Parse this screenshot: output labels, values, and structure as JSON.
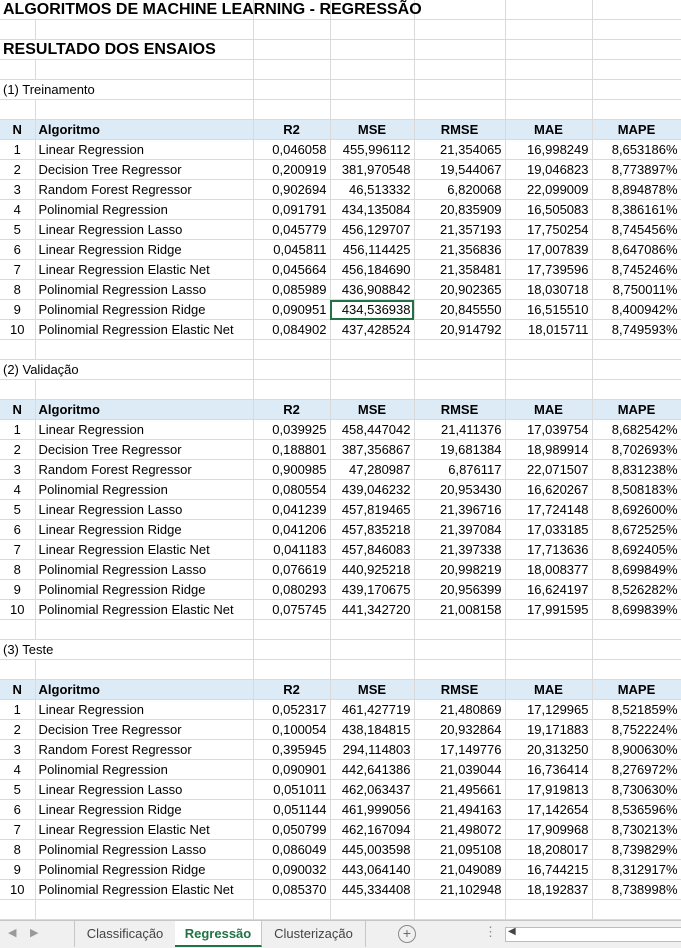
{
  "title": "ALGORITMOS DE MACHINE LEARNING - REGRESSÃO",
  "subtitle": "RESULTADO DOS ENSAIOS",
  "columns": [
    "N",
    "Algoritmo",
    "R2",
    "MSE",
    "RMSE",
    "MAE",
    "MAPE"
  ],
  "sections": [
    {
      "label": "(1) Treinamento",
      "rows": [
        [
          "1",
          "Linear Regression",
          "0,046058",
          "455,996112",
          "21,354065",
          "16,998249",
          "8,653186%"
        ],
        [
          "2",
          "Decision Tree Regressor",
          "0,200919",
          "381,970548",
          "19,544067",
          "19,046823",
          "8,773897%"
        ],
        [
          "3",
          "Random Forest Regressor",
          "0,902694",
          "46,513332",
          "6,820068",
          "22,099009",
          "8,894878%"
        ],
        [
          "4",
          "Polinomial Regression",
          "0,091791",
          "434,135084",
          "20,835909",
          "16,505083",
          "8,386161%"
        ],
        [
          "5",
          "Linear Regression Lasso",
          "0,045779",
          "456,129707",
          "21,357193",
          "17,750254",
          "8,745456%"
        ],
        [
          "6",
          "Linear Regression Ridge",
          "0,045811",
          "456,114425",
          "21,356836",
          "17,007839",
          "8,647086%"
        ],
        [
          "7",
          "Linear Regression Elastic Net",
          "0,045664",
          "456,184690",
          "21,358481",
          "17,739596",
          "8,745246%"
        ],
        [
          "8",
          "Polinomial Regression Lasso",
          "0,085989",
          "436,908842",
          "20,902365",
          "18,030718",
          "8,750011%"
        ],
        [
          "9",
          "Polinomial Regression Ridge",
          "0,090951",
          "434,536938",
          "20,845550",
          "16,515510",
          "8,400942%"
        ],
        [
          "10",
          "Polinomial Regression Elastic Net",
          "0,084902",
          "437,428524",
          "20,914792",
          "18,015711",
          "8,749593%"
        ]
      ]
    },
    {
      "label": "(2) Validação",
      "rows": [
        [
          "1",
          "Linear Regression",
          "0,039925",
          "458,447042",
          "21,411376",
          "17,039754",
          "8,682542%"
        ],
        [
          "2",
          "Decision Tree Regressor",
          "0,188801",
          "387,356867",
          "19,681384",
          "18,989914",
          "8,702693%"
        ],
        [
          "3",
          "Random Forest Regressor",
          "0,900985",
          "47,280987",
          "6,876117",
          "22,071507",
          "8,831238%"
        ],
        [
          "4",
          "Polinomial Regression",
          "0,080554",
          "439,046232",
          "20,953430",
          "16,620267",
          "8,508183%"
        ],
        [
          "5",
          "Linear Regression Lasso",
          "0,041239",
          "457,819465",
          "21,396716",
          "17,724148",
          "8,692600%"
        ],
        [
          "6",
          "Linear Regression Ridge",
          "0,041206",
          "457,835218",
          "21,397084",
          "17,033185",
          "8,672525%"
        ],
        [
          "7",
          "Linear Regression Elastic Net",
          "0,041183",
          "457,846083",
          "21,397338",
          "17,713636",
          "8,692405%"
        ],
        [
          "8",
          "Polinomial Regression Lasso",
          "0,076619",
          "440,925218",
          "20,998219",
          "18,008377",
          "8,699849%"
        ],
        [
          "9",
          "Polinomial Regression Ridge",
          "0,080293",
          "439,170675",
          "20,956399",
          "16,624197",
          "8,526282%"
        ],
        [
          "10",
          "Polinomial Regression Elastic Net",
          "0,075745",
          "441,342720",
          "21,008158",
          "17,991595",
          "8,699839%"
        ]
      ]
    },
    {
      "label": "(3) Teste",
      "rows": [
        [
          "1",
          "Linear Regression",
          "0,052317",
          "461,427719",
          "21,480869",
          "17,129965",
          "8,521859%"
        ],
        [
          "2",
          "Decision Tree Regressor",
          "0,100054",
          "438,184815",
          "20,932864",
          "19,171883",
          "8,752224%"
        ],
        [
          "3",
          "Random Forest Regressor",
          "0,395945",
          "294,114803",
          "17,149776",
          "20,313250",
          "8,900630%"
        ],
        [
          "4",
          "Polinomial Regression",
          "0,090901",
          "442,641386",
          "21,039044",
          "16,736414",
          "8,276972%"
        ],
        [
          "5",
          "Linear Regression Lasso",
          "0,051011",
          "462,063437",
          "21,495661",
          "17,919813",
          "8,730630%"
        ],
        [
          "6",
          "Linear Regression Ridge",
          "0,051144",
          "461,999056",
          "21,494163",
          "17,142654",
          "8,536596%"
        ],
        [
          "7",
          "Linear Regression Elastic Net",
          "0,050799",
          "462,167094",
          "21,498072",
          "17,909968",
          "8,730213%"
        ],
        [
          "8",
          "Polinomial Regression Lasso",
          "0,086049",
          "445,003598",
          "21,095108",
          "18,208017",
          "8,739829%"
        ],
        [
          "9",
          "Polinomial Regression Ridge",
          "0,090032",
          "443,064140",
          "21,049089",
          "16,744215",
          "8,312917%"
        ],
        [
          "10",
          "Polinomial Regression Elastic Net",
          "0,085370",
          "445,334408",
          "21,102948",
          "18,192837",
          "8,738998%"
        ]
      ]
    }
  ],
  "sheet_tabs": [
    {
      "label": "Classificação",
      "active": false
    },
    {
      "label": "Regressão",
      "active": true
    },
    {
      "label": "Clusterização",
      "active": false
    }
  ],
  "selected_cell": {
    "section": 0,
    "row": 8,
    "col": 3
  },
  "colors": {
    "header_fill": "#ddebf7",
    "active_tab": "#217346",
    "gridline": "#dadada"
  }
}
